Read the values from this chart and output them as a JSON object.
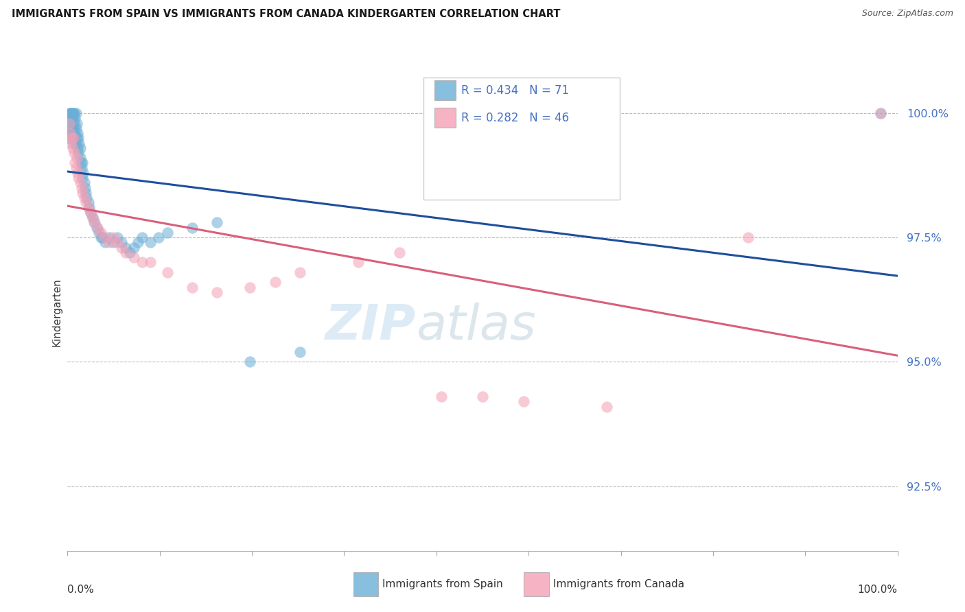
{
  "title": "IMMIGRANTS FROM SPAIN VS IMMIGRANTS FROM CANADA KINDERGARTEN CORRELATION CHART",
  "source": "Source: ZipAtlas.com",
  "ylabel": "Kindergarten",
  "y_ticks": [
    92.5,
    95.0,
    97.5,
    100.0
  ],
  "y_tick_labels": [
    "92.5%",
    "95.0%",
    "97.5%",
    "100.0%"
  ],
  "xlim": [
    0.0,
    1.0
  ],
  "ylim": [
    91.2,
    100.8
  ],
  "legend_blue_label": "Immigrants from Spain",
  "legend_pink_label": "Immigrants from Canada",
  "R_blue": 0.434,
  "N_blue": 71,
  "R_pink": 0.282,
  "N_pink": 46,
  "blue_color": "#6aaed6",
  "pink_color": "#f4a0b5",
  "blue_line_color": "#1f4e9e",
  "pink_line_color": "#d95f7a",
  "watermark_zip": "ZIP",
  "watermark_atlas": "atlas",
  "spain_x": [
    0.001,
    0.002,
    0.002,
    0.003,
    0.003,
    0.003,
    0.004,
    0.004,
    0.004,
    0.005,
    0.005,
    0.005,
    0.006,
    0.006,
    0.006,
    0.007,
    0.007,
    0.007,
    0.008,
    0.008,
    0.008,
    0.009,
    0.009,
    0.01,
    0.01,
    0.01,
    0.011,
    0.011,
    0.012,
    0.012,
    0.013,
    0.013,
    0.014,
    0.015,
    0.015,
    0.016,
    0.017,
    0.018,
    0.018,
    0.019,
    0.02,
    0.021,
    0.022,
    0.023,
    0.025,
    0.026,
    0.028,
    0.03,
    0.032,
    0.035,
    0.038,
    0.04,
    0.042,
    0.045,
    0.05,
    0.055,
    0.06,
    0.065,
    0.07,
    0.075,
    0.08,
    0.085,
    0.09,
    0.1,
    0.11,
    0.12,
    0.15,
    0.18,
    0.22,
    0.28,
    0.98
  ],
  "spain_y": [
    99.5,
    100.0,
    99.7,
    99.8,
    100.0,
    99.6,
    99.9,
    99.5,
    100.0,
    99.7,
    99.8,
    100.0,
    99.6,
    99.9,
    100.0,
    99.4,
    99.7,
    100.0,
    99.5,
    99.8,
    100.0,
    99.6,
    99.9,
    99.4,
    99.7,
    100.0,
    99.5,
    99.8,
    99.3,
    99.6,
    99.2,
    99.5,
    99.4,
    99.1,
    99.3,
    99.0,
    98.9,
    98.7,
    99.0,
    98.8,
    98.6,
    98.5,
    98.4,
    98.3,
    98.2,
    98.1,
    98.0,
    97.9,
    97.8,
    97.7,
    97.6,
    97.5,
    97.5,
    97.4,
    97.5,
    97.4,
    97.5,
    97.4,
    97.3,
    97.2,
    97.3,
    97.4,
    97.5,
    97.4,
    97.5,
    97.6,
    97.7,
    97.8,
    95.0,
    95.2,
    100.0
  ],
  "canada_x": [
    0.002,
    0.003,
    0.004,
    0.005,
    0.006,
    0.007,
    0.008,
    0.009,
    0.01,
    0.011,
    0.012,
    0.013,
    0.015,
    0.017,
    0.018,
    0.02,
    0.022,
    0.025,
    0.028,
    0.03,
    0.033,
    0.036,
    0.04,
    0.045,
    0.05,
    0.055,
    0.06,
    0.065,
    0.07,
    0.08,
    0.09,
    0.1,
    0.12,
    0.15,
    0.18,
    0.22,
    0.25,
    0.28,
    0.35,
    0.4,
    0.45,
    0.5,
    0.55,
    0.65,
    0.82,
    0.98
  ],
  "canada_y": [
    99.8,
    99.6,
    99.4,
    99.5,
    99.3,
    99.5,
    99.2,
    99.0,
    98.9,
    99.1,
    98.8,
    98.7,
    98.6,
    98.5,
    98.4,
    98.3,
    98.2,
    98.1,
    98.0,
    97.9,
    97.8,
    97.7,
    97.6,
    97.5,
    97.4,
    97.5,
    97.4,
    97.3,
    97.2,
    97.1,
    97.0,
    97.0,
    96.8,
    96.5,
    96.4,
    96.5,
    96.6,
    96.8,
    97.0,
    97.2,
    94.3,
    94.3,
    94.2,
    94.1,
    97.5,
    100.0
  ]
}
